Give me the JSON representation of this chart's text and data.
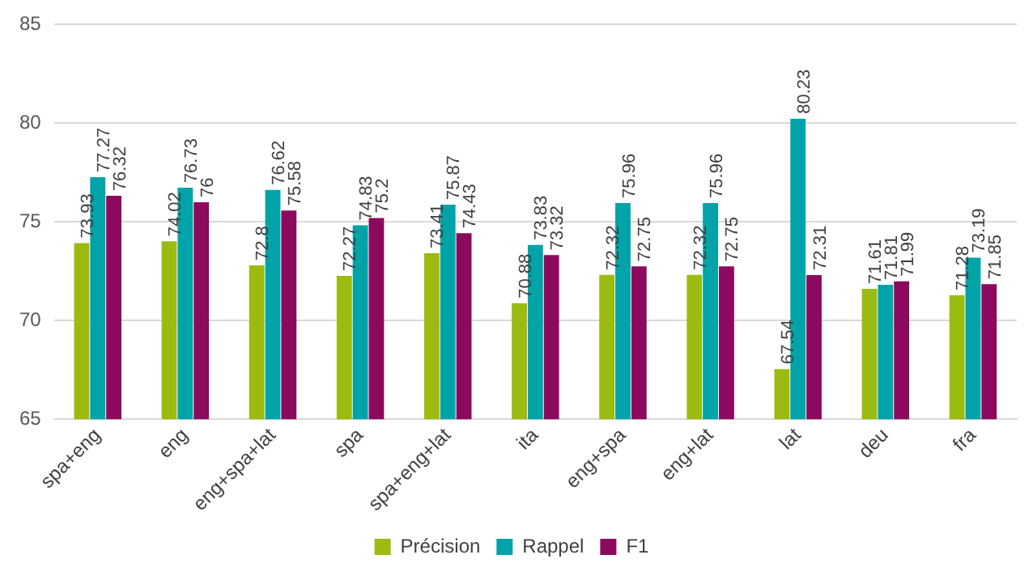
{
  "chart_data": {
    "type": "bar",
    "categories": [
      "spa+eng",
      "eng",
      "eng+spa+lat",
      "spa",
      "spa+eng+lat",
      "ita",
      "eng+spa",
      "eng+lat",
      "lat",
      "deu",
      "fra"
    ],
    "series": [
      {
        "name": "Précision",
        "color": "#9bbb10",
        "values": [
          73.93,
          74.02,
          72.8,
          72.27,
          73.41,
          70.88,
          72.32,
          72.32,
          67.54,
          71.61,
          71.28
        ]
      },
      {
        "name": "Rappel",
        "color": "#00a3a8",
        "values": [
          77.27,
          76.73,
          76.62,
          74.83,
          75.87,
          73.83,
          75.96,
          75.96,
          80.23,
          71.81,
          73.19
        ]
      },
      {
        "name": "F1",
        "color": "#8c0a5e",
        "values": [
          76.32,
          76,
          75.58,
          75.2,
          74.43,
          73.32,
          72.75,
          72.75,
          72.31,
          71.99,
          71.85
        ]
      }
    ],
    "ylim": [
      65,
      85
    ],
    "yticks": [
      65,
      70,
      75,
      80,
      85
    ],
    "grid": "y",
    "legend": "bottom",
    "data_labels": true
  }
}
